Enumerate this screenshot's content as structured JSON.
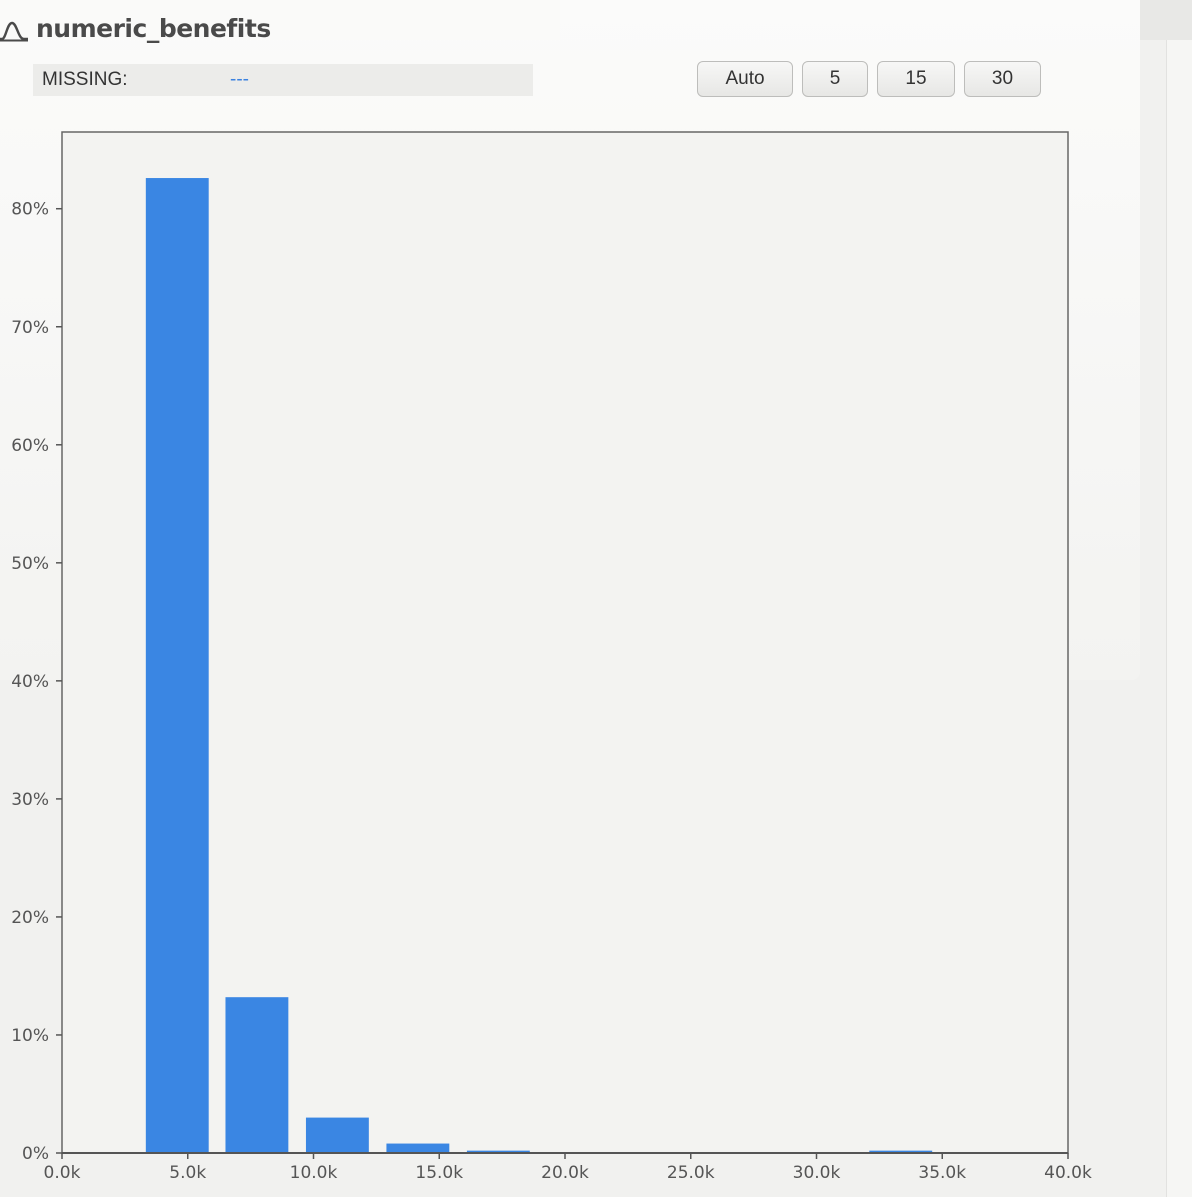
{
  "title": "numeric_benefits",
  "missing": {
    "label": "MISSING:",
    "value": "---"
  },
  "bins": {
    "auto": "Auto",
    "b5": "5",
    "b15": "15",
    "b30": "30"
  },
  "colors": {
    "bar": "#3a86e3",
    "axis": "#555555",
    "link": "#3b82e0"
  },
  "chart_data": {
    "type": "bar",
    "title": "numeric_benefits",
    "xlabel": "",
    "ylabel": "",
    "xlim": [
      0,
      40000
    ],
    "ylim": [
      0,
      0.865
    ],
    "grid": false,
    "bins": [
      {
        "x0": 3333,
        "x1": 5833,
        "value": 0.826
      },
      {
        "x0": 6500,
        "x1": 9000,
        "value": 0.132
      },
      {
        "x0": 9700,
        "x1": 12200,
        "value": 0.03
      },
      {
        "x0": 12900,
        "x1": 15400,
        "value": 0.008
      },
      {
        "x0": 16100,
        "x1": 18600,
        "value": 0.002
      },
      {
        "x0": 32100,
        "x1": 34600,
        "value": 0.002
      }
    ],
    "x_ticks": [
      {
        "value": 0,
        "label": "0.0k"
      },
      {
        "value": 5000,
        "label": "5.0k"
      },
      {
        "value": 10000,
        "label": "10.0k"
      },
      {
        "value": 15000,
        "label": "15.0k"
      },
      {
        "value": 20000,
        "label": "20.0k"
      },
      {
        "value": 25000,
        "label": "25.0k"
      },
      {
        "value": 30000,
        "label": "30.0k"
      },
      {
        "value": 35000,
        "label": "35.0k"
      },
      {
        "value": 40000,
        "label": "40.0k"
      }
    ],
    "y_ticks": [
      {
        "value": 0,
        "label": "0%"
      },
      {
        "value": 0.1,
        "label": "10%"
      },
      {
        "value": 0.2,
        "label": "20%"
      },
      {
        "value": 0.3,
        "label": "30%"
      },
      {
        "value": 0.4,
        "label": "40%"
      },
      {
        "value": 0.5,
        "label": "50%"
      },
      {
        "value": 0.6,
        "label": "60%"
      },
      {
        "value": 0.7,
        "label": "70%"
      },
      {
        "value": 0.8,
        "label": "80%"
      }
    ]
  }
}
